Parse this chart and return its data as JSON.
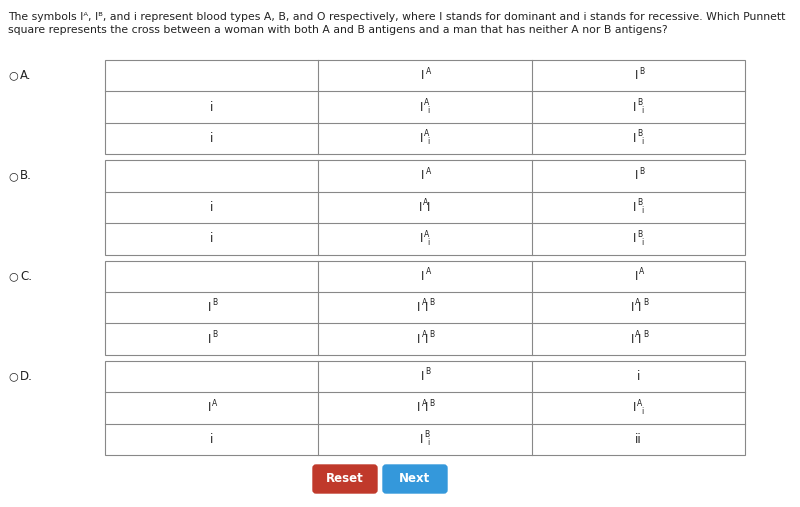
{
  "title_line1": "The symbols Iᴬ, Iᴮ, and i represent blood types A, B, and O respectively, where I stands for dominant and i stands for recessive. Which Punnett",
  "title_line2": "square represents the cross between a woman with both A and B antigens and a man that has neither A nor B antigens?",
  "bg_color": "#ffffff",
  "grid_line_color": "#888888",
  "text_color": "#222222",
  "button_reset_color": "#c0392b",
  "button_next_color": "#3498db",
  "button_text_color": "#ffffff",
  "grids": [
    {
      "label": "A",
      "col_headers": [
        "",
        "IA",
        "IB"
      ],
      "rows": [
        [
          "i",
          "IAi",
          "IBi"
        ],
        [
          "i",
          "IAi",
          "IBi"
        ]
      ]
    },
    {
      "label": "B",
      "col_headers": [
        "",
        "IA",
        "IB"
      ],
      "rows": [
        [
          "i",
          "IAI",
          "IBi"
        ],
        [
          "i",
          "IAi",
          "IBi"
        ]
      ]
    },
    {
      "label": "C",
      "col_headers": [
        "",
        "IA",
        "IA"
      ],
      "rows": [
        [
          "IB",
          "IAIB",
          "IAIB"
        ],
        [
          "IB",
          "IAIB",
          "IAIB"
        ]
      ]
    },
    {
      "label": "D",
      "col_headers": [
        "",
        "IB",
        "i"
      ],
      "rows": [
        [
          "IA",
          "IAIB",
          "IAi"
        ],
        [
          "i",
          "IBi",
          "ii"
        ]
      ]
    }
  ]
}
